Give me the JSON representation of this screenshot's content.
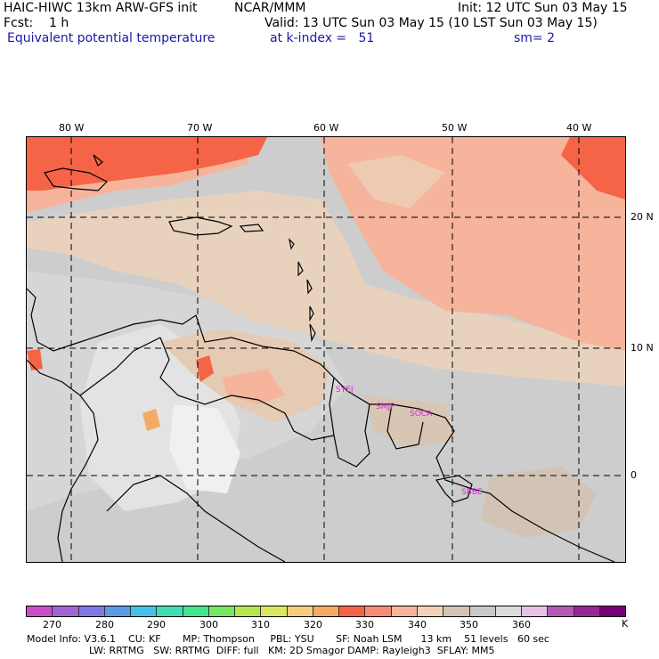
{
  "header": {
    "title": "HAIC-HIWC 13km ARW-GFS init",
    "center": "NCAR/MMM",
    "init": "Init: 12 UTC Sun 03 May 15",
    "fcst": "Fcst:    1 h",
    "valid": "Valid: 13 UTC Sun 03 May 15 (10 LST Sun 03 May 15)",
    "field": "Equivalent potential temperature",
    "level": "at k-index =   51",
    "smooth": "sm= 2"
  },
  "map": {
    "lon_labels": [
      "80 W",
      "70 W",
      "60 W",
      "50 W",
      "40 W"
    ],
    "lat_labels": [
      "20 N",
      "10 N",
      "0"
    ],
    "stations": [
      "SYEJ",
      "SMJP",
      "SOCA",
      "SBBE"
    ]
  },
  "colorbar": {
    "colors": [
      "#c84fc8",
      "#a064d2",
      "#8178e6",
      "#5a9be6",
      "#44c3e6",
      "#40dcb4",
      "#41e68c",
      "#78e664",
      "#b4e650",
      "#dce660",
      "#f5cd7d",
      "#f5aa64",
      "#f56446",
      "#f58c78",
      "#f5b49b",
      "#f0d2b9",
      "#d2c3b4",
      "#c8c8c8",
      "#dcdcdc",
      "#e6c3e6",
      "#b45ab4",
      "#962896",
      "#780078"
    ],
    "labels": [
      "270",
      "280",
      "290",
      "300",
      "310",
      "320",
      "330",
      "340",
      "350",
      "360"
    ],
    "unit": "K"
  },
  "footer": {
    "line1": "Model Info: V3.6.1    CU: KF       MP: Thompson     PBL: YSU       SF: Noah LSM      13 km    51 levels   60 sec",
    "line2": "LW: RRTMG   SW: RRTMG  DIFF: full   KM: 2D Smagor DAMP: Rayleigh3  SFLAY: MM5"
  }
}
